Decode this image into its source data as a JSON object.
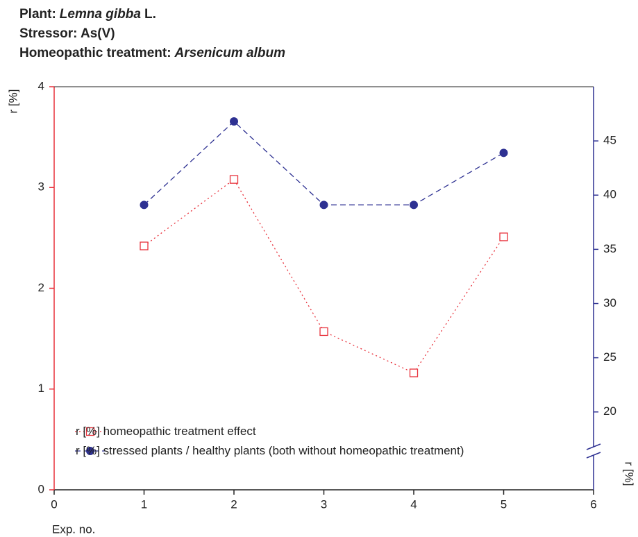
{
  "chart_data": {
    "type": "line",
    "title_lines": [
      [
        "Plant:",
        "Lemna gibba",
        "L."
      ],
      [
        "Stressor: As(V)"
      ],
      [
        "Homeopathic treatment:",
        "Arsenicum album"
      ]
    ],
    "ylabel": "r [%]",
    "y2label": "r [%]",
    "xlabel": "Exp. no.",
    "x": [
      1,
      2,
      3,
      4,
      5
    ],
    "xlim": [
      0,
      6
    ],
    "xticks": [
      0,
      1,
      2,
      3,
      4,
      5,
      6
    ],
    "ylim": [
      0,
      4
    ],
    "yticks": [
      0,
      1,
      2,
      3,
      4
    ],
    "y2lim": [
      16.4,
      50
    ],
    "y2ticks": [
      20,
      25,
      30,
      35,
      40,
      45
    ],
    "y2_axis_break": true,
    "series": [
      {
        "name": "r [%] homeopathic treatment effect",
        "color": "#e8303a",
        "marker": "open-square",
        "line": "dotted",
        "values": [
          2.42,
          3.08,
          1.57,
          1.16,
          2.51
        ]
      },
      {
        "name": "r [%] stressed plants / healthy plants (both without homeopathic treatment)",
        "color": "#2e3192",
        "marker": "filled-circle",
        "line": "dashed",
        "axis": "y2",
        "values": [
          39.1,
          46.8,
          39.1,
          39.1,
          43.9
        ]
      }
    ],
    "legend": "lower left",
    "left_axis_color": "#e8303a",
    "right_axis_color": "#2e3192"
  }
}
